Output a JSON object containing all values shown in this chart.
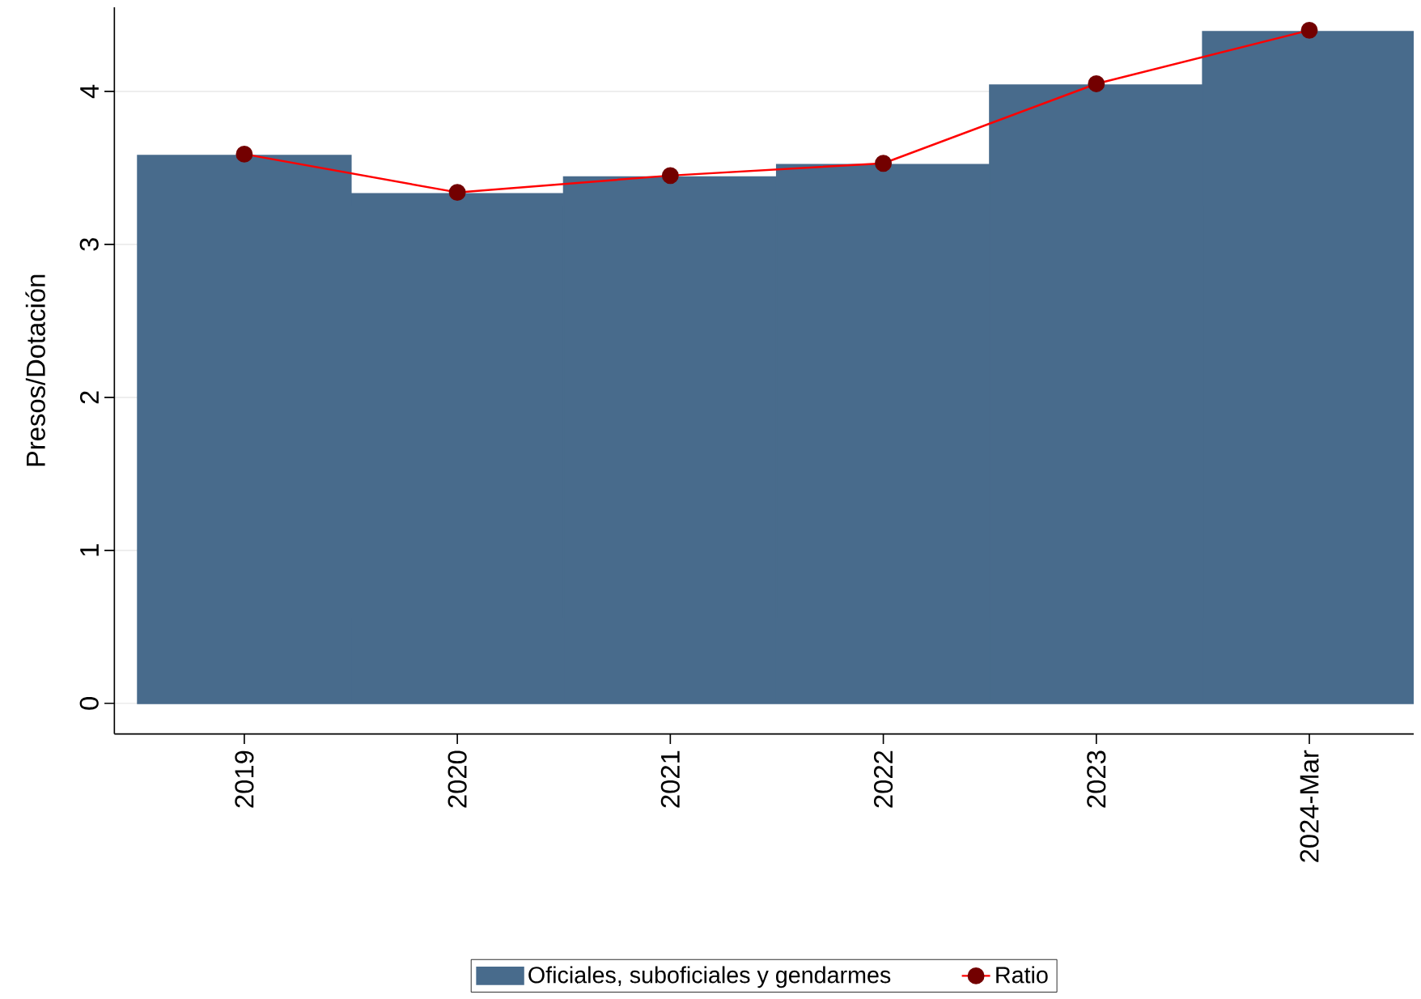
{
  "chart_data": {
    "type": "bar",
    "ylabel": "Presos/Dotación",
    "categories": [
      "2019",
      "2020",
      "2021",
      "2022",
      "2023",
      "2024-Mar"
    ],
    "series": [
      {
        "name": "Oficiales, suboficiales y gendarmes",
        "color": "#486b8c",
        "values": [
          3.58,
          3.33,
          3.44,
          3.52,
          4.04,
          4.39
        ]
      },
      {
        "name": "Ratio",
        "type": "line",
        "color": "#ff0000",
        "marker": "circle",
        "values": [
          3.59,
          3.34,
          3.45,
          3.53,
          4.05,
          4.4
        ]
      }
    ],
    "ylim": [
      -0.2,
      4.55
    ],
    "yticks": [
      0,
      1,
      2,
      3,
      4
    ],
    "grid": "y",
    "legend": "bottom"
  }
}
